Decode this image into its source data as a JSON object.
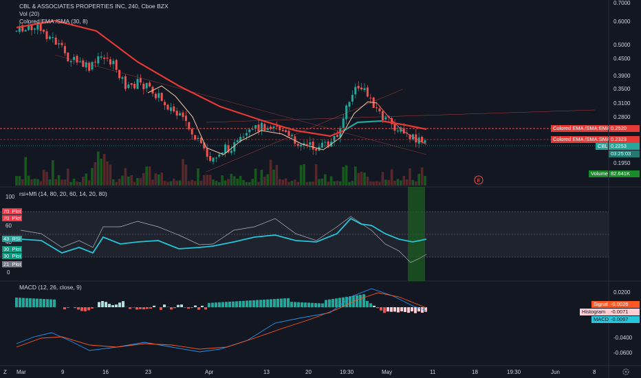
{
  "legend": {
    "title": "CBL & ASSOCIATES PROPERTIES INC, 240, Cboe BZX",
    "vol": "Vol (20)",
    "ema": "Colored EMA /SMA (30, 8)",
    "rsi": "rsi+Mfi (14, 80, 20, 60, 14, 20, 80)",
    "macd": "MACD (12, 26, close, 9)"
  },
  "price_axis": [
    "0.7000",
    "0.6000",
    "0.5000",
    "0.4500",
    "0.3900",
    "0.3500",
    "0.3100",
    "0.2800",
    "0.1950"
  ],
  "rsi_axis": [
    "100",
    "80",
    "60",
    "40",
    "20",
    "0"
  ],
  "macd_axis": [
    "0.0200",
    "-0.0400",
    "-0.0600"
  ],
  "date_axis": [
    "Mar",
    "9",
    "16",
    "23",
    "Apr",
    "13",
    "20",
    "19:30",
    "May",
    "11",
    "18",
    "19:30",
    "Jun",
    "8"
  ],
  "tags": {
    "ema_ema": "Colored EMA /SMA:EMA",
    "ema_ema_val": "0.2520",
    "ema_sma": "Colored EMA /SMA:SMA",
    "ema_sma_val": "0.2323",
    "ticker": "CBL",
    "price": "0.2253",
    "countdown": "03:25:03",
    "volume_label": "Volume",
    "volume_val": "82.641K",
    "signal_label": "Signal",
    "signal_val": "-0.0026",
    "hist_label": "Histogram",
    "hist_val": "-0.0071",
    "macd_label": "MACD",
    "macd_val": "-0.0097"
  },
  "rsi_tags": [
    {
      "num": "70",
      "name": "Plot",
      "color": "#f23645"
    },
    {
      "num": "70",
      "name": "Plot",
      "color": "#f23645"
    },
    {
      "num": "43",
      "name": "RSI",
      "color": "#26a69a"
    },
    {
      "num": "30",
      "name": "Plot",
      "color": "#089981"
    },
    {
      "num": "30",
      "name": "Plot",
      "color": "#089981"
    },
    {
      "num": "21",
      "name": "Plot",
      "color": "#787b86"
    }
  ],
  "earnings_marker": "E",
  "corner_label": "Z",
  "colors": {
    "up": "#26a69a",
    "down": "#ef5350",
    "ema": "#e53935",
    "accent": "#2962ff"
  }
}
